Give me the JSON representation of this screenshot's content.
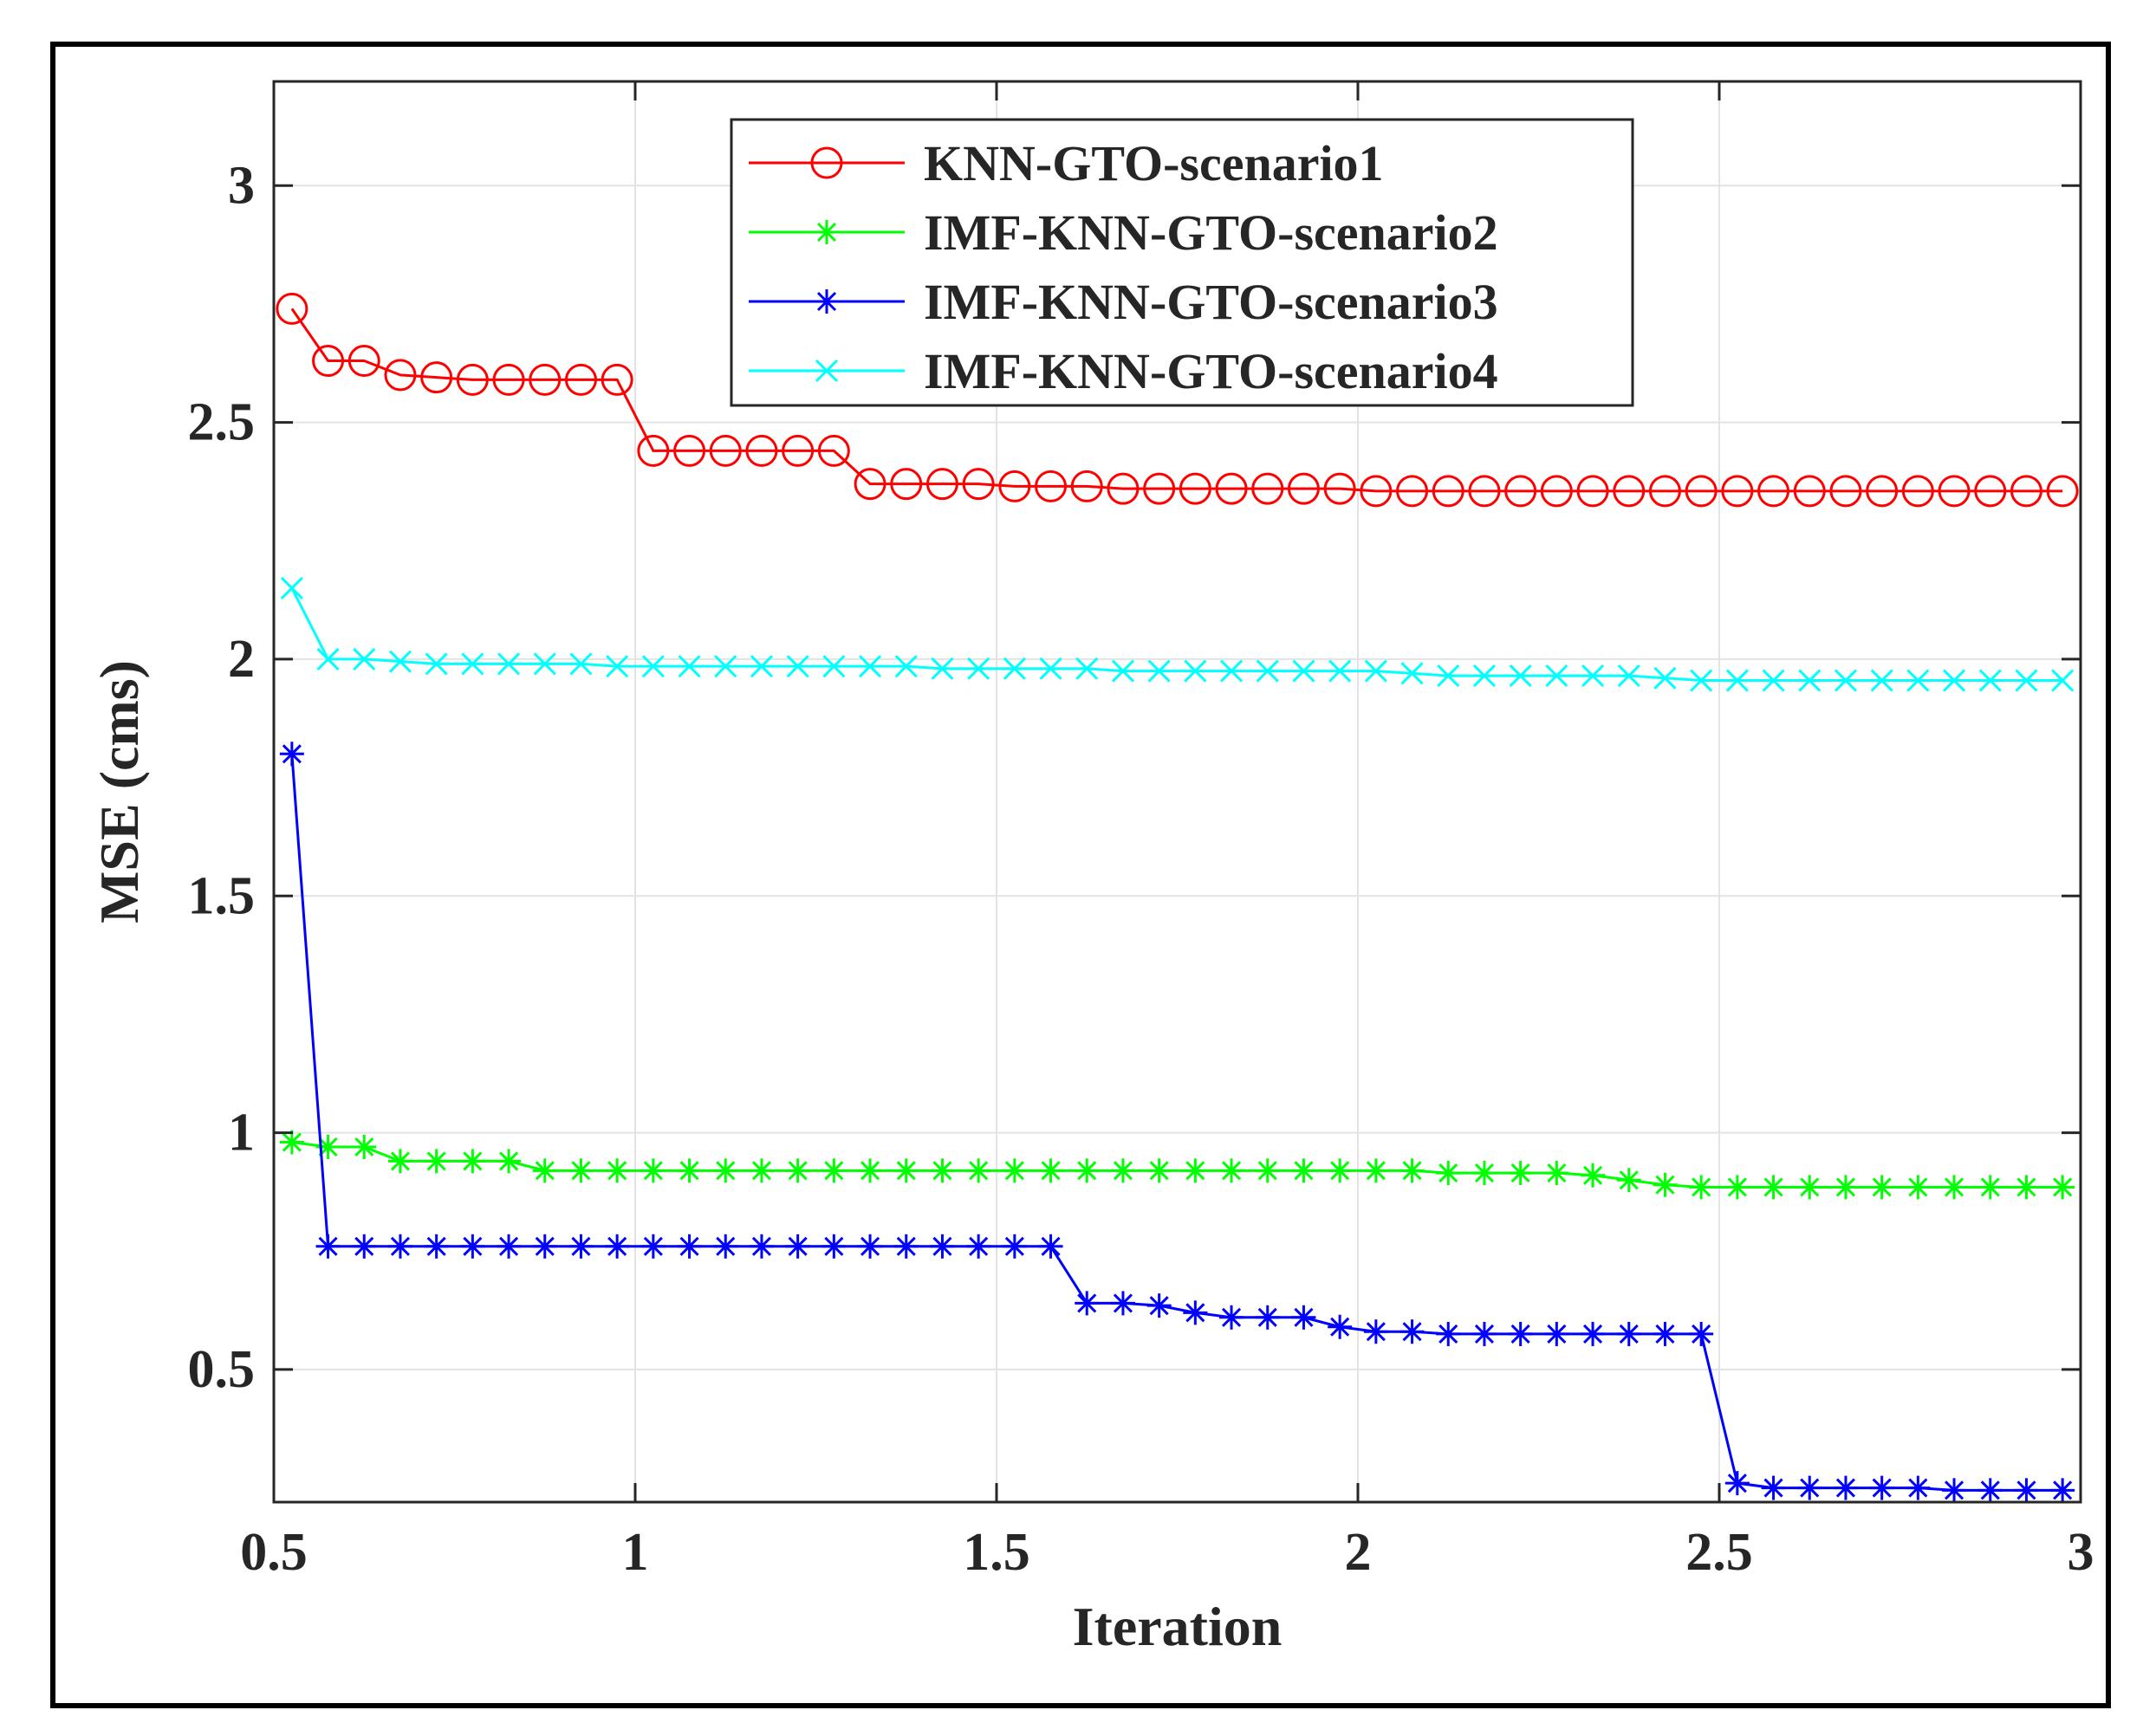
{
  "chart_data": {
    "type": "line",
    "title": "",
    "xlabel": "Iteration",
    "ylabel": "MSE (cms)",
    "xlim": [
      0.5,
      3
    ],
    "ylim": [
      0.22,
      3.22
    ],
    "xticks": [
      0.5,
      1,
      1.5,
      2,
      2.5,
      3
    ],
    "xtick_labels": [
      "0.5",
      "1",
      "1.5",
      "2",
      "2.5",
      "3"
    ],
    "yticks": [
      0.5,
      1,
      1.5,
      2,
      2.5,
      3
    ],
    "ytick_labels": [
      "0.5",
      "1",
      "1.5",
      "2",
      "2.5",
      "3"
    ],
    "grid": true,
    "legend_position": "top-center",
    "x": [
      0.525,
      0.575,
      0.625,
      0.675,
      0.725,
      0.775,
      0.825,
      0.875,
      0.925,
      0.975,
      1.025,
      1.075,
      1.125,
      1.175,
      1.225,
      1.275,
      1.325,
      1.375,
      1.425,
      1.475,
      1.525,
      1.575,
      1.625,
      1.675,
      1.725,
      1.775,
      1.825,
      1.875,
      1.925,
      1.975,
      2.025,
      2.075,
      2.125,
      2.175,
      2.225,
      2.275,
      2.325,
      2.375,
      2.425,
      2.475,
      2.525,
      2.575,
      2.625,
      2.675,
      2.725,
      2.775,
      2.825,
      2.875,
      2.925,
      2.975
    ],
    "series": [
      {
        "name": "KNN-GTO-scenario1",
        "color": "#ff0000",
        "marker": "circle",
        "values": [
          2.74,
          2.63,
          2.63,
          2.6,
          2.595,
          2.59,
          2.59,
          2.59,
          2.59,
          2.59,
          2.44,
          2.44,
          2.44,
          2.44,
          2.44,
          2.44,
          2.37,
          2.37,
          2.37,
          2.37,
          2.365,
          2.365,
          2.365,
          2.36,
          2.36,
          2.36,
          2.36,
          2.36,
          2.36,
          2.36,
          2.355,
          2.355,
          2.355,
          2.355,
          2.355,
          2.355,
          2.355,
          2.355,
          2.355,
          2.355,
          2.355,
          2.355,
          2.355,
          2.355,
          2.355,
          2.355,
          2.355,
          2.355,
          2.355,
          2.355
        ]
      },
      {
        "name": "IMF-KNN-GTO-scenario2",
        "color": "#00ff00",
        "marker": "asterisk",
        "values": [
          0.98,
          0.97,
          0.97,
          0.94,
          0.94,
          0.94,
          0.94,
          0.92,
          0.92,
          0.92,
          0.92,
          0.92,
          0.92,
          0.92,
          0.92,
          0.92,
          0.92,
          0.92,
          0.92,
          0.92,
          0.92,
          0.92,
          0.92,
          0.92,
          0.92,
          0.92,
          0.92,
          0.92,
          0.92,
          0.92,
          0.92,
          0.92,
          0.915,
          0.915,
          0.915,
          0.915,
          0.91,
          0.9,
          0.89,
          0.885,
          0.885,
          0.885,
          0.885,
          0.885,
          0.885,
          0.885,
          0.885,
          0.885,
          0.885,
          0.885
        ]
      },
      {
        "name": "IMF-KNN-GTO-scenario3",
        "color": "#0000ff",
        "marker": "asterisk",
        "values": [
          1.8,
          0.76,
          0.76,
          0.76,
          0.76,
          0.76,
          0.76,
          0.76,
          0.76,
          0.76,
          0.76,
          0.76,
          0.76,
          0.76,
          0.76,
          0.76,
          0.76,
          0.76,
          0.76,
          0.76,
          0.76,
          0.76,
          0.64,
          0.64,
          0.635,
          0.62,
          0.61,
          0.61,
          0.61,
          0.59,
          0.58,
          0.58,
          0.575,
          0.575,
          0.575,
          0.575,
          0.575,
          0.575,
          0.575,
          0.575,
          0.26,
          0.25,
          0.25,
          0.25,
          0.25,
          0.25,
          0.245,
          0.245,
          0.245,
          0.245
        ]
      },
      {
        "name": "IMF-KNN-GTO-scenario4",
        "color": "#00ffff",
        "marker": "x",
        "values": [
          2.15,
          2.0,
          2.0,
          1.995,
          1.99,
          1.99,
          1.99,
          1.99,
          1.99,
          1.985,
          1.985,
          1.985,
          1.985,
          1.985,
          1.985,
          1.985,
          1.985,
          1.985,
          1.98,
          1.98,
          1.98,
          1.98,
          1.98,
          1.975,
          1.975,
          1.975,
          1.975,
          1.975,
          1.975,
          1.975,
          1.975,
          1.97,
          1.965,
          1.965,
          1.965,
          1.965,
          1.965,
          1.965,
          1.96,
          1.955,
          1.955,
          1.955,
          1.955,
          1.955,
          1.955,
          1.955,
          1.955,
          1.955,
          1.955,
          1.955
        ]
      }
    ]
  }
}
